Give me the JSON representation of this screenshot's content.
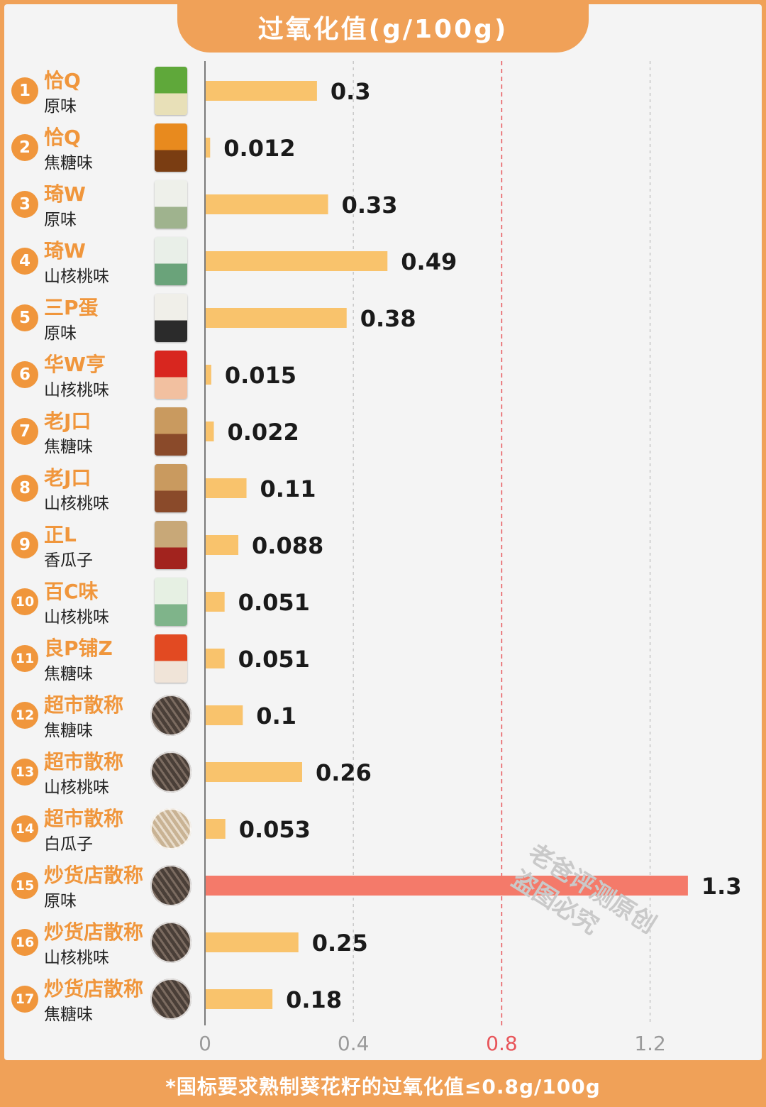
{
  "title": "过氧化值(g/100g)",
  "footer": "*国标要求熟制葵花籽的过氧化值≤0.8g/100g",
  "watermark": [
    "老爸评测原创",
    "盗图必究"
  ],
  "colors": {
    "accent": "#f0a158",
    "bar": "#f9c36c",
    "highlight_bar": "#f47a6a",
    "threshold_line": "#e8555a",
    "brand_text": "#f0963c"
  },
  "items": [
    {
      "rank": "1",
      "brand": "恰Q",
      "flavor": "原味",
      "product_icon": "green-bag-icon"
    },
    {
      "rank": "2",
      "brand": "恰Q",
      "flavor": "焦糖味",
      "product_icon": "orange-bag-icon"
    },
    {
      "rank": "3",
      "brand": "琦W",
      "flavor": "原味",
      "product_icon": "white-bag-icon"
    },
    {
      "rank": "4",
      "brand": "琦W",
      "flavor": "山核桃味",
      "product_icon": "white-green-bag-icon"
    },
    {
      "rank": "5",
      "brand": "三P蛋",
      "flavor": "原味",
      "product_icon": "white-dark-bag-icon"
    },
    {
      "rank": "6",
      "brand": "华W亨",
      "flavor": "山核桃味",
      "product_icon": "red-bag-icon"
    },
    {
      "rank": "7",
      "brand": "老J口",
      "flavor": "焦糖味",
      "product_icon": "kraft-bag-icon"
    },
    {
      "rank": "8",
      "brand": "老J口",
      "flavor": "山核桃味",
      "product_icon": "kraft-bag-icon"
    },
    {
      "rank": "9",
      "brand": "正L",
      "flavor": "香瓜子",
      "product_icon": "red-kraft-bag-icon"
    },
    {
      "rank": "10",
      "brand": "百C味",
      "flavor": "山核桃味",
      "product_icon": "mint-bag-icon"
    },
    {
      "rank": "11",
      "brand": "良P铺Z",
      "flavor": "焦糖味",
      "product_icon": "orange-red-bag-icon"
    },
    {
      "rank": "12",
      "brand": "超市散称",
      "flavor": "焦糖味",
      "product_icon": "seed-pile-icon"
    },
    {
      "rank": "13",
      "brand": "超市散称",
      "flavor": "山核桃味",
      "product_icon": "seed-pile-icon"
    },
    {
      "rank": "14",
      "brand": "超市散称",
      "flavor": "白瓜子",
      "product_icon": "white-seed-pile-icon"
    },
    {
      "rank": "15",
      "brand": "炒货店散称",
      "flavor": "原味",
      "product_icon": "seed-pile-icon"
    },
    {
      "rank": "16",
      "brand": "炒货店散称",
      "flavor": "山核桃味",
      "product_icon": "seed-pile-icon"
    },
    {
      "rank": "17",
      "brand": "炒货店散称",
      "flavor": "焦糖味",
      "product_icon": "seed-pile-icon"
    }
  ],
  "chart_data": {
    "type": "bar",
    "orientation": "horizontal",
    "title": "过氧化值(g/100g)",
    "categories": [
      "恰Q 原味",
      "恰Q 焦糖味",
      "琦W 原味",
      "琦W 山核桃味",
      "三P蛋 原味",
      "华W亨 山核桃味",
      "老J口 焦糖味",
      "老J口 山核桃味",
      "正L 香瓜子",
      "百C味 山核桃味",
      "良P铺Z 焦糖味",
      "超市散称 焦糖味",
      "超市散称 山核桃味",
      "超市散称 白瓜子",
      "炒货店散称 原味",
      "炒货店散称 山核桃味",
      "炒货店散称 焦糖味"
    ],
    "values": [
      0.3,
      0.012,
      0.33,
      0.49,
      0.38,
      0.015,
      0.022,
      0.11,
      0.088,
      0.051,
      0.051,
      0.1,
      0.26,
      0.053,
      1.3,
      0.25,
      0.18
    ],
    "value_labels": [
      "0.3",
      "0.012",
      "0.33",
      "0.49",
      "0.38",
      "0.015",
      "0.022",
      "0.11",
      "0.088",
      "0.051",
      "0.051",
      "0.1",
      "0.26",
      "0.053",
      "1.3",
      "0.25",
      "0.18"
    ],
    "xlim": [
      0,
      1.3
    ],
    "xticks": [
      0,
      0.4,
      0.8,
      1.2
    ],
    "xtick_labels": [
      "0",
      "0.4",
      "0.8",
      "1.2"
    ],
    "threshold": 0.8,
    "highlight_index": 14,
    "grid": "vertical dashed"
  }
}
